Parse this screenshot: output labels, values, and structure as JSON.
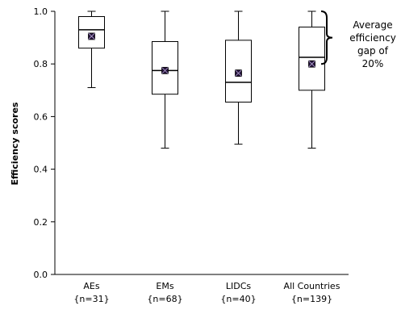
{
  "chart_data": {
    "type": "boxplot",
    "ylabel": "Efficiency scores",
    "ylim": [
      0,
      1
    ],
    "yticks": [
      "0.0",
      "0.2",
      "0.4",
      "0.6",
      "0.8",
      "1.0"
    ],
    "grid": false,
    "categories": [
      {
        "name": "AEs",
        "n": "{n=31}",
        "min": 0.71,
        "q1": 0.86,
        "median": 0.93,
        "q3": 0.98,
        "max": 1.0,
        "mean": 0.905
      },
      {
        "name": "EMs",
        "n": "{n=68}",
        "min": 0.48,
        "q1": 0.685,
        "median": 0.775,
        "q3": 0.885,
        "max": 1.0,
        "mean": 0.775
      },
      {
        "name": "LIDCs",
        "n": "{n=40}",
        "min": 0.495,
        "q1": 0.655,
        "median": 0.73,
        "q3": 0.89,
        "max": 1.0,
        "mean": 0.765
      },
      {
        "name": "All Countries",
        "n": "{n=139}",
        "min": 0.48,
        "q1": 0.7,
        "median": 0.825,
        "q3": 0.94,
        "max": 1.0,
        "mean": 0.8
      }
    ],
    "annotation": {
      "lines": [
        "Average",
        "efficiency",
        "gap of",
        "20%"
      ],
      "brace_from": 1.0,
      "brace_to": 0.8
    }
  }
}
